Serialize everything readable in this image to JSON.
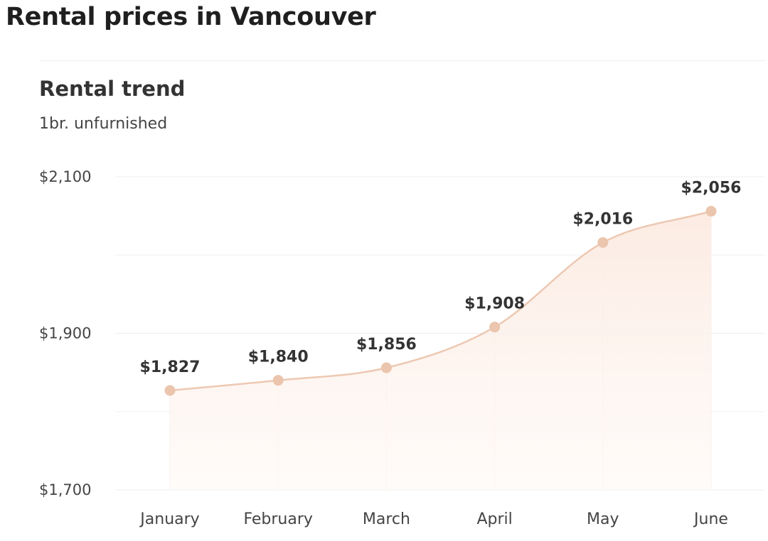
{
  "page": {
    "title": "Rental prices in Vancouver"
  },
  "chart_data": {
    "type": "area",
    "title": "Rental trend",
    "subtitle": "1br. unfurnished",
    "categories": [
      "January",
      "February",
      "March",
      "April",
      "May",
      "June"
    ],
    "series": [
      {
        "values": [
          1827,
          1840,
          1856,
          1908,
          2016,
          2056
        ],
        "labels": [
          "$1,827",
          "$1,840",
          "$1,856",
          "$1,908",
          "$2,016",
          "$2,056"
        ]
      }
    ],
    "yticks": [
      {
        "value": 2100,
        "label": "$2,100"
      },
      {
        "value": 1900,
        "label": "$1,900"
      },
      {
        "value": 1700,
        "label": "$1,700"
      }
    ],
    "ylim": [
      1700,
      2100
    ],
    "grid": true,
    "colors": {
      "line": "#edc8b2",
      "marker": "#ebc5ad",
      "fill_top": "#fbe8de",
      "fill_bottom": "#fffaf7",
      "grid": "#efefef"
    }
  }
}
